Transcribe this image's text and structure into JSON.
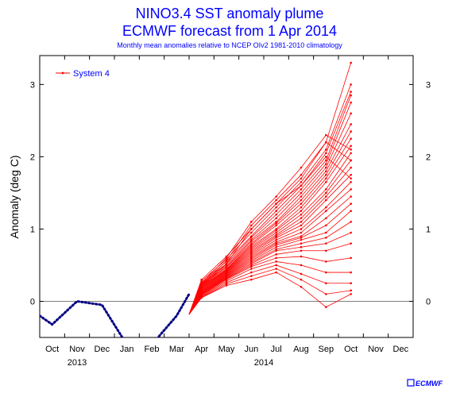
{
  "title": "NINO3.4 SST anomaly plume",
  "subtitle": "ECMWF forecast from 1 Apr 2014",
  "caption": "Monthly mean anomalies relative to NCEP OIv2 1981-2010 climatology",
  "logo": {
    "text": "ECMWF",
    "color": "#0000ff"
  },
  "colors": {
    "forecast": "#ff0000",
    "observed": "#000080",
    "text": "#0000ff"
  },
  "chart_data": {
    "type": "line",
    "title": "NINO3.4 SST anomaly plume",
    "subtitle": "ECMWF forecast from 1 Apr 2014",
    "xlabel": "",
    "ylabel": "Anomaly (deg C)",
    "ylim": [
      -0.5,
      3.4
    ],
    "yticks": [
      0,
      1,
      2,
      3
    ],
    "month_labels": [
      "Oct",
      "Nov",
      "Dec",
      "Jan",
      "Feb",
      "Mar",
      "Apr",
      "May",
      "Jun",
      "Jul",
      "Aug",
      "Sep",
      "Oct",
      "Nov",
      "Dec"
    ],
    "year_labels": [
      {
        "label": "2013",
        "month_index": 1
      },
      {
        "label": "2014",
        "month_index": 8.5
      }
    ],
    "legend": {
      "label": "System 4",
      "placement": "top-left"
    },
    "grid": false,
    "zero_line": true,
    "observed": {
      "style": "dotted",
      "x": [
        -0.5,
        0,
        1,
        2,
        3,
        4,
        5,
        5.5
      ],
      "y": [
        -0.2,
        -0.32,
        0.0,
        -0.05,
        -0.6,
        -0.6,
        -0.2,
        0.1
      ]
    },
    "forecast": {
      "name": "System 4",
      "x": [
        5.5,
        6,
        7,
        8,
        9,
        10,
        11,
        12
      ],
      "members": [
        [
          -0.18,
          0.3,
          0.62,
          1.0,
          1.35,
          1.7,
          2.2,
          3.3
        ],
        [
          -0.18,
          0.28,
          0.58,
          0.95,
          1.3,
          1.65,
          2.1,
          3.0
        ],
        [
          -0.18,
          0.26,
          0.55,
          0.9,
          1.25,
          1.6,
          2.05,
          2.9
        ],
        [
          -0.18,
          0.25,
          0.52,
          0.88,
          1.2,
          1.55,
          1.95,
          2.85
        ],
        [
          -0.18,
          0.24,
          0.5,
          0.85,
          1.15,
          1.5,
          1.9,
          2.75
        ],
        [
          -0.18,
          0.23,
          0.48,
          0.83,
          1.1,
          1.45,
          1.85,
          2.6
        ],
        [
          -0.18,
          0.22,
          0.47,
          0.8,
          1.08,
          1.4,
          1.8,
          2.45
        ],
        [
          -0.18,
          0.21,
          0.45,
          0.78,
          1.05,
          1.35,
          1.75,
          2.35
        ],
        [
          -0.18,
          0.2,
          0.44,
          0.76,
          1.0,
          1.3,
          1.7,
          2.25
        ],
        [
          -0.18,
          0.19,
          0.43,
          0.74,
          0.98,
          1.25,
          1.65,
          2.15
        ],
        [
          -0.18,
          0.18,
          0.42,
          0.72,
          0.95,
          1.2,
          1.55,
          2.05
        ],
        [
          -0.18,
          0.17,
          0.41,
          0.7,
          0.92,
          1.15,
          1.5,
          1.95
        ],
        [
          -0.18,
          0.16,
          0.4,
          0.68,
          0.9,
          1.1,
          1.45,
          1.85
        ],
        [
          -0.18,
          0.15,
          0.39,
          0.66,
          0.88,
          1.05,
          1.4,
          1.75
        ],
        [
          -0.18,
          0.14,
          0.38,
          0.64,
          0.85,
          1.0,
          1.3,
          1.65
        ],
        [
          -0.18,
          0.13,
          0.37,
          0.62,
          0.82,
          0.95,
          1.25,
          1.55
        ],
        [
          -0.18,
          0.12,
          0.36,
          0.6,
          0.8,
          0.9,
          1.15,
          1.45
        ],
        [
          -0.18,
          0.12,
          0.35,
          0.58,
          0.78,
          0.88,
          1.05,
          1.35
        ],
        [
          -0.18,
          0.11,
          0.34,
          0.56,
          0.75,
          0.85,
          0.95,
          1.25
        ],
        [
          -0.18,
          0.1,
          0.33,
          0.54,
          0.72,
          0.8,
          0.88,
          1.1
        ],
        [
          -0.18,
          0.1,
          0.32,
          0.52,
          0.7,
          0.75,
          0.8,
          0.95
        ],
        [
          -0.18,
          0.09,
          0.31,
          0.5,
          0.65,
          0.7,
          0.7,
          0.8
        ],
        [
          -0.18,
          0.08,
          0.3,
          0.48,
          0.6,
          0.62,
          0.55,
          0.6
        ],
        [
          -0.18,
          0.07,
          0.28,
          0.45,
          0.55,
          0.5,
          0.4,
          0.4
        ],
        [
          -0.18,
          0.06,
          0.26,
          0.4,
          0.5,
          0.38,
          0.25,
          0.25
        ],
        [
          -0.18,
          0.05,
          0.24,
          0.35,
          0.45,
          0.3,
          0.1,
          0.15
        ],
        [
          -0.18,
          0.05,
          0.22,
          0.3,
          0.4,
          0.2,
          -0.08,
          0.1
        ],
        [
          -0.18,
          0.25,
          0.6,
          1.1,
          1.45,
          1.85,
          2.3,
          2.1
        ],
        [
          -0.18,
          0.22,
          0.56,
          1.05,
          1.4,
          1.75,
          2.2,
          1.95
        ],
        [
          -0.18,
          0.2,
          0.52,
          1.0,
          1.35,
          1.6,
          2.0,
          1.7
        ]
      ]
    }
  }
}
